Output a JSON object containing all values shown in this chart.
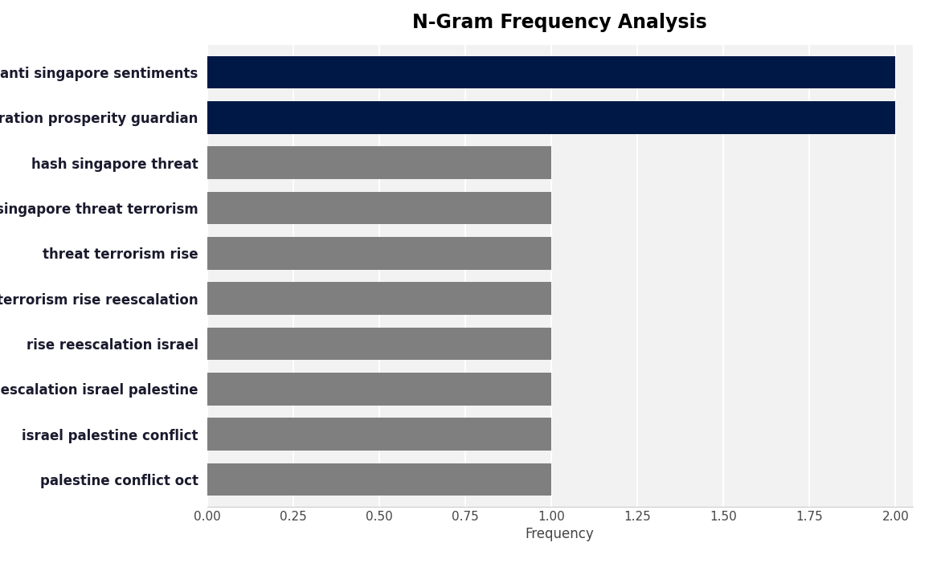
{
  "title": "N-Gram Frequency Analysis",
  "xlabel": "Frequency",
  "categories": [
    "palestine conflict oct",
    "israel palestine conflict",
    "reescalation israel palestine",
    "rise reescalation israel",
    "terrorism rise reescalation",
    "threat terrorism rise",
    "singapore threat terrorism",
    "hash singapore threat",
    "operation prosperity guardian",
    "anti singapore sentiments"
  ],
  "values": [
    1,
    1,
    1,
    1,
    1,
    1,
    1,
    1,
    2,
    2
  ],
  "bar_colors": [
    "#7f7f7f",
    "#7f7f7f",
    "#7f7f7f",
    "#7f7f7f",
    "#7f7f7f",
    "#7f7f7f",
    "#7f7f7f",
    "#7f7f7f",
    "#001845",
    "#001845"
  ],
  "xlim": [
    0,
    2.05
  ],
  "xticks": [
    0.0,
    0.25,
    0.5,
    0.75,
    1.0,
    1.25,
    1.5,
    1.75,
    2.0
  ],
  "xtick_labels": [
    "0.00",
    "0.25",
    "0.50",
    "0.75",
    "1.00",
    "1.25",
    "1.50",
    "1.75",
    "2.00"
  ],
  "plot_bg_color": "#f2f2f2",
  "fig_bg_color": "#ffffff",
  "title_fontsize": 17,
  "label_fontsize": 12,
  "tick_fontsize": 11,
  "bar_height": 0.72,
  "label_color": "#1a1a2e",
  "tick_color": "#444444"
}
